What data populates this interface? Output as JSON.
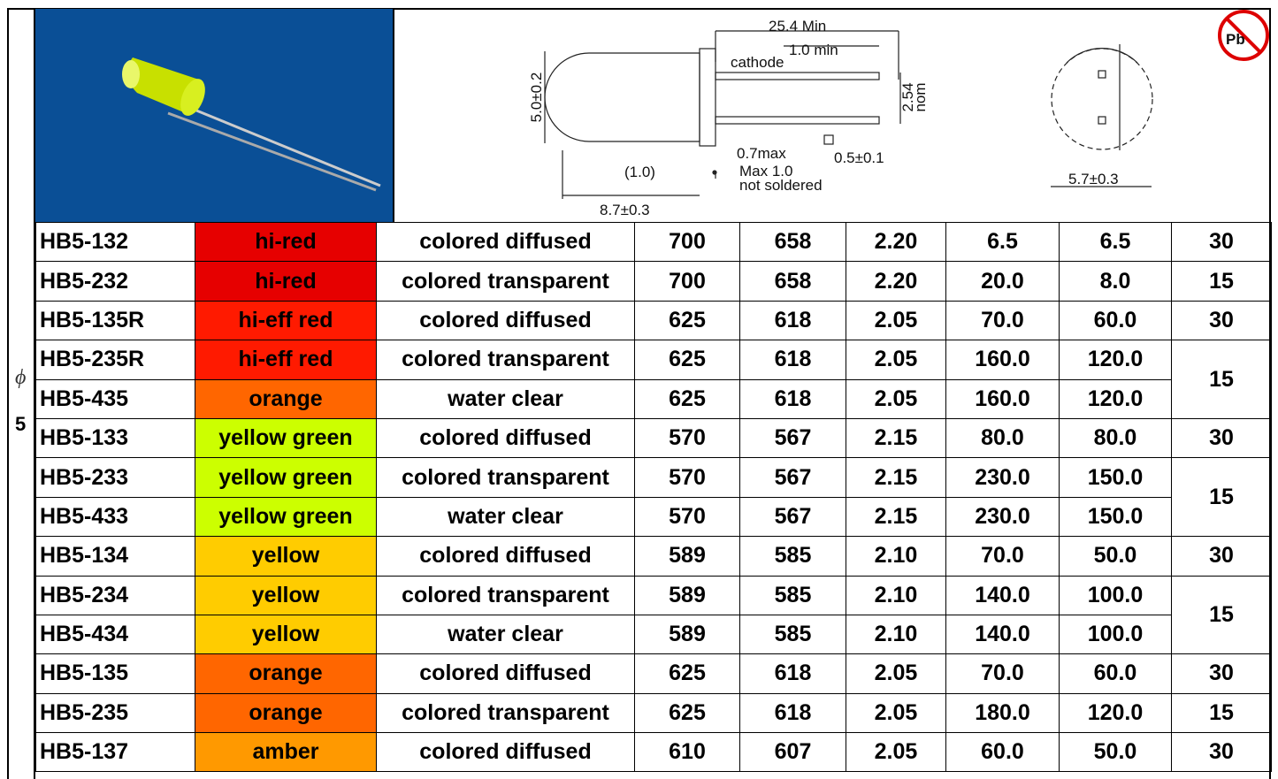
{
  "side_label": {
    "symbol": "ϕ",
    "size": "5"
  },
  "drawing": {
    "overall_length": "25.4 Min",
    "lead_min": "1.0 min",
    "cathode": "cathode",
    "diameter": "5.0±0.2",
    "pitch": "2.54",
    "pitch_note": "nom",
    "flange": "0.7max",
    "lead_size": "0.5±0.1",
    "flange_gap": "(1.0)",
    "max_note": "Max 1.0",
    "solder_note": "not soldered",
    "body_length": "8.7±0.3",
    "base_diameter": "5.7±0.3",
    "pb_mark": "Pb"
  },
  "table": {
    "fills": [
      "#e60000",
      "#e60000",
      "#ff1a00",
      "#ff1a00",
      "#ff6600",
      "#ccff00",
      "#ccff00",
      "#ccff00",
      "#ffcc00",
      "#ffcc00",
      "#ffcc00",
      "#ff6600",
      "#ff6600",
      "#ff9900"
    ],
    "rows": [
      [
        "HB5-132",
        "hi-red",
        "colored diffused",
        "700",
        "658",
        "2.20",
        "6.5",
        "6.5"
      ],
      [
        "HB5-232",
        "hi-red",
        "colored transparent",
        "700",
        "658",
        "2.20",
        "20.0",
        "8.0"
      ],
      [
        "HB5-135R",
        "hi-eff red",
        "colored diffused",
        "625",
        "618",
        "2.05",
        "70.0",
        "60.0"
      ],
      [
        "HB5-235R",
        "hi-eff red",
        "colored transparent",
        "625",
        "618",
        "2.05",
        "160.0",
        "120.0"
      ],
      [
        "HB5-435",
        "orange",
        "water clear",
        "625",
        "618",
        "2.05",
        "160.0",
        "120.0"
      ],
      [
        "HB5-133",
        "yellow green",
        "colored diffused",
        "570",
        "567",
        "2.15",
        "80.0",
        "80.0"
      ],
      [
        "HB5-233",
        "yellow green",
        "colored transparent",
        "570",
        "567",
        "2.15",
        "230.0",
        "150.0"
      ],
      [
        "HB5-433",
        "yellow green",
        "water clear",
        "570",
        "567",
        "2.15",
        "230.0",
        "150.0"
      ],
      [
        "HB5-134",
        "yellow",
        "colored diffused",
        "589",
        "585",
        "2.10",
        "70.0",
        "50.0"
      ],
      [
        "HB5-234",
        "yellow",
        "colored transparent",
        "589",
        "585",
        "2.10",
        "140.0",
        "100.0"
      ],
      [
        "HB5-434",
        "yellow",
        "water clear",
        "589",
        "585",
        "2.10",
        "140.0",
        "100.0"
      ],
      [
        "HB5-135",
        "orange",
        "colored diffused",
        "625",
        "618",
        "2.05",
        "70.0",
        "60.0"
      ],
      [
        "HB5-235",
        "orange",
        "colored transparent",
        "625",
        "618",
        "2.05",
        "180.0",
        "120.0"
      ],
      [
        "HB5-137",
        "amber",
        "colored diffused",
        "610",
        "607",
        "2.05",
        "60.0",
        "50.0"
      ]
    ],
    "last_column": [
      {
        "value": "30",
        "span": 1
      },
      {
        "value": "15",
        "span": 1
      },
      {
        "value": "30",
        "span": 1
      },
      {
        "value": "15",
        "span": 2
      },
      {
        "value": "30",
        "span": 1
      },
      {
        "value": "15",
        "span": 2
      },
      {
        "value": "30",
        "span": 1
      },
      {
        "value": "15",
        "span": 2
      },
      {
        "value": "30",
        "span": 1
      },
      {
        "value": "15",
        "span": 1
      },
      {
        "value": "30",
        "span": 1
      }
    ]
  }
}
